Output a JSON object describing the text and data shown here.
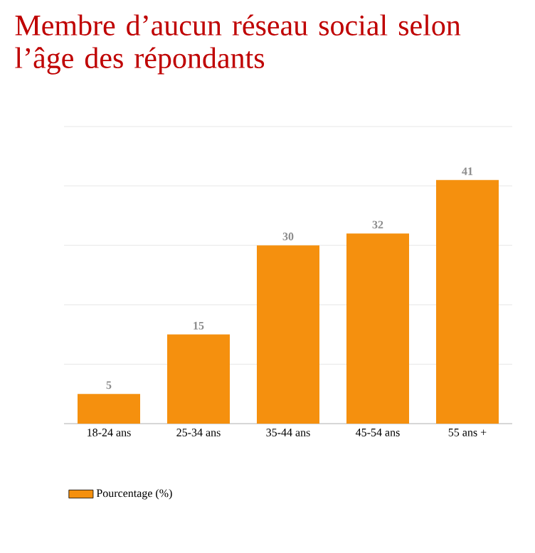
{
  "chart_data": {
    "type": "bar",
    "title": "Membre d’aucun réseau social selon l’âge des répondants",
    "categories": [
      "18-24 ans",
      "25-34 ans",
      "35-44 ans",
      "45-54 ans",
      "55 ans +"
    ],
    "series": [
      {
        "name": "Pourcentage (%)",
        "color": "#f5900e",
        "values": [
          5,
          15,
          30,
          32,
          41
        ]
      }
    ],
    "ylim": [
      0,
      50
    ],
    "yticks": [
      {
        "value": 10,
        "label": null
      },
      {
        "value": 20,
        "label": null
      },
      {
        "value": 30,
        "label": null
      },
      {
        "value": 40,
        "label": null
      },
      {
        "value": 50,
        "label": null
      }
    ],
    "tick_labels": "x",
    "grid": "y",
    "data_labels": true,
    "legend": "bottom left"
  }
}
